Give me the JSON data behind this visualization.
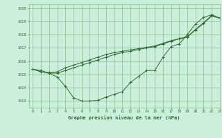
{
  "title": "Graphe pression niveau de la mer (hPa)",
  "background_color": "#cceedd",
  "grid_color": "#88bb88",
  "line_color": "#2d6a2d",
  "marker_color": "#2d6a2d",
  "xlim": [
    -0.5,
    23
  ],
  "ylim": [
    1012.5,
    1020.3
  ],
  "yticks": [
    1013,
    1014,
    1015,
    1016,
    1017,
    1018,
    1019,
    1020
  ],
  "xticks": [
    0,
    1,
    2,
    3,
    4,
    5,
    6,
    7,
    8,
    9,
    10,
    11,
    12,
    13,
    14,
    15,
    16,
    17,
    18,
    19,
    20,
    21,
    22,
    23
  ],
  "series1": [
    1015.4,
    1015.3,
    1015.1,
    1014.8,
    1014.1,
    1013.25,
    1013.0,
    1013.0,
    1013.05,
    1013.3,
    1013.5,
    1013.7,
    1014.4,
    1014.85,
    1015.3,
    1015.3,
    1016.3,
    1017.1,
    1017.3,
    1018.0,
    1018.8,
    1019.3,
    1019.5,
    1019.25
  ],
  "series2": [
    1015.4,
    1015.2,
    1015.15,
    1015.2,
    1015.5,
    1015.7,
    1015.9,
    1016.1,
    1016.3,
    1016.5,
    1016.65,
    1016.75,
    1016.85,
    1016.95,
    1017.05,
    1017.15,
    1017.35,
    1017.55,
    1017.7,
    1017.85,
    1018.4,
    1018.9,
    1019.45,
    1019.25
  ],
  "series3": [
    1015.4,
    1015.2,
    1015.1,
    1015.1,
    1015.3,
    1015.5,
    1015.7,
    1015.9,
    1016.1,
    1016.3,
    1016.5,
    1016.65,
    1016.75,
    1016.88,
    1017.0,
    1017.1,
    1017.3,
    1017.5,
    1017.68,
    1017.82,
    1018.35,
    1018.85,
    1019.4,
    1019.25
  ]
}
